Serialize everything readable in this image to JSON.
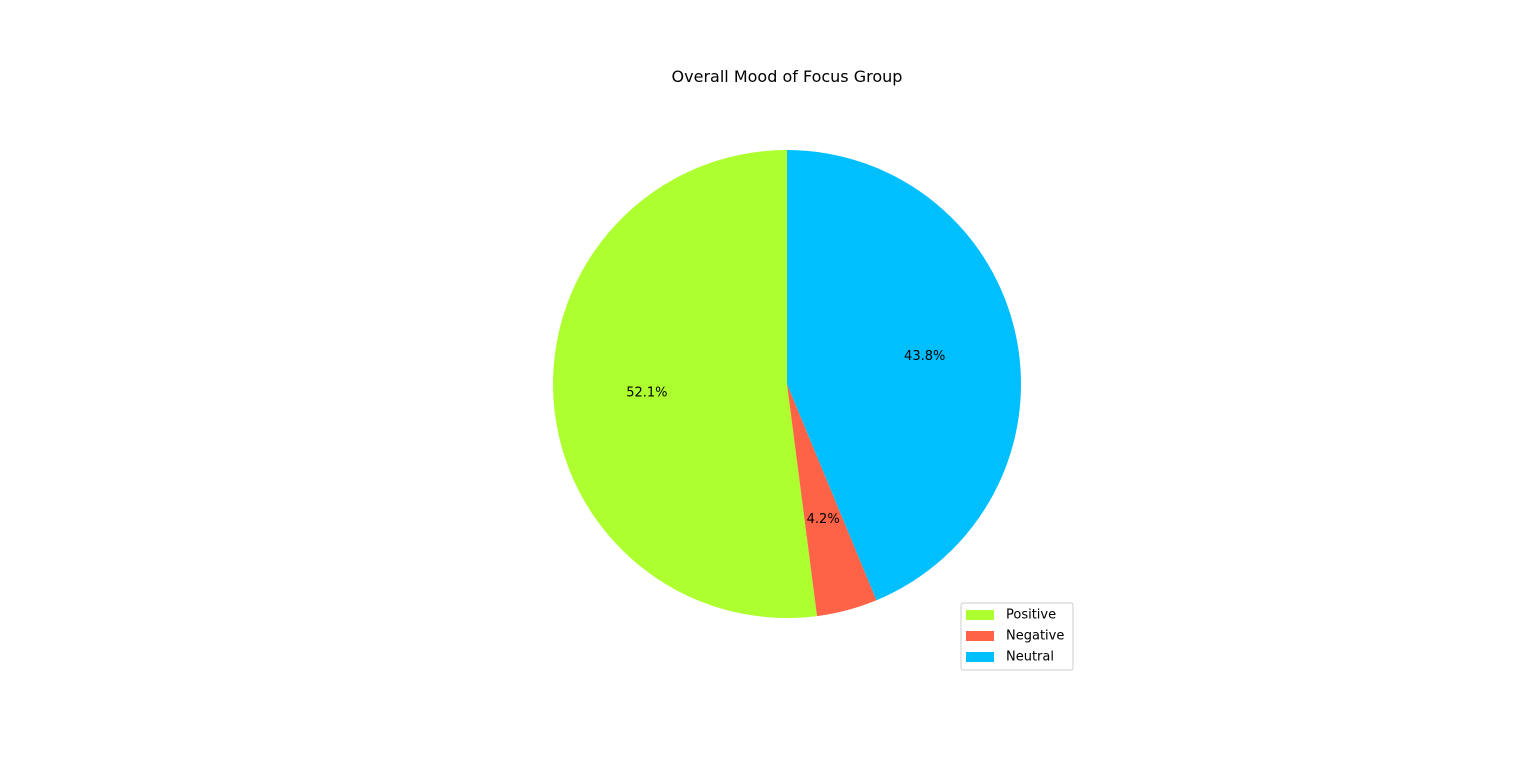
{
  "chart_data": {
    "type": "pie",
    "title": "Overall Mood of Focus Group",
    "categories": [
      "Positive",
      "Negative",
      "Neutral"
    ],
    "values": [
      52.1,
      4.2,
      43.8
    ],
    "labels": [
      "52.1%",
      "4.2%",
      "43.8%"
    ],
    "colors": [
      "#adff2f",
      "#ff6347",
      "#00bfff"
    ],
    "start_angle_deg": 90,
    "direction": "counterclockwise",
    "legend_position": "lower-right"
  }
}
